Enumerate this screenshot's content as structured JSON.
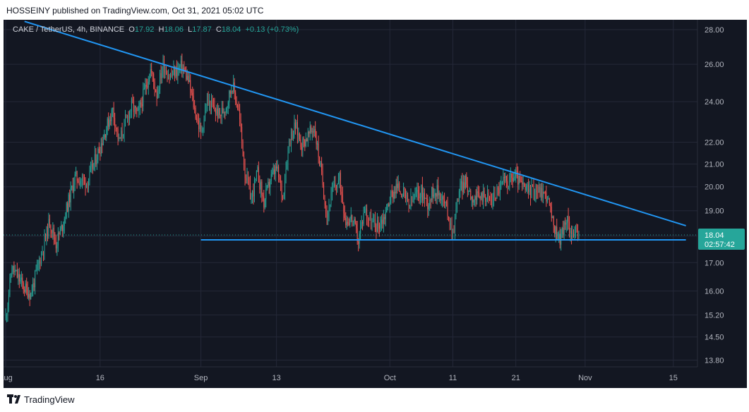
{
  "header": {
    "published_by": "HOSSEINY published on TradingView.com, Oct 31, 2021 05:02 UTC"
  },
  "legend": {
    "symbol": "CAKE / TetherUS, 4h, BINANCE",
    "open_label": "O",
    "open": "17.92",
    "high_label": "H",
    "high": "18.06",
    "low_label": "L",
    "low": "17.87",
    "close_label": "C",
    "close": "18.04",
    "change": "+0.13 (+0.73%)"
  },
  "footer": {
    "brand": "TradingView"
  },
  "chart_data": {
    "type": "candlestick",
    "price_axis": {
      "scale": "log",
      "ticks": [
        "28.00",
        "26.00",
        "24.00",
        "22.00",
        "21.00",
        "20.00",
        "19.00",
        "18.00",
        "17.00",
        "16.00",
        "15.20",
        "14.50",
        "13.80"
      ],
      "range": [
        13.6,
        28.6
      ]
    },
    "time_axis": {
      "ticks": [
        {
          "label": "Aug",
          "date": "2021-08-01"
        },
        {
          "label": "16",
          "date": "2021-08-16"
        },
        {
          "label": "Sep",
          "date": "2021-09-01"
        },
        {
          "label": "13",
          "date": "2021-09-13"
        },
        {
          "label": "Oct",
          "date": "2021-10-01"
        },
        {
          "label": "11",
          "date": "2021-10-11"
        },
        {
          "label": "21",
          "date": "2021-10-21"
        },
        {
          "label": "Nov",
          "date": "2021-11-01"
        },
        {
          "label": "15",
          "date": "2021-11-15"
        }
      ]
    },
    "last_price": {
      "value": "18.04",
      "countdown": "02:57:42"
    },
    "price_path": [
      [
        "2021-08-01",
        15.1
      ],
      [
        "2021-08-02",
        16.8
      ],
      [
        "2021-08-04",
        16.1
      ],
      [
        "2021-08-05",
        15.9
      ],
      [
        "2021-08-07",
        17.6
      ],
      [
        "2021-08-08",
        18.6
      ],
      [
        "2021-08-09",
        17.7
      ],
      [
        "2021-08-10",
        18.4
      ],
      [
        "2021-08-12",
        20.4
      ],
      [
        "2021-08-14",
        20.2
      ],
      [
        "2021-08-16",
        21.8
      ],
      [
        "2021-08-18",
        23.6
      ],
      [
        "2021-08-19",
        22.0
      ],
      [
        "2021-08-21",
        23.8
      ],
      [
        "2021-08-22",
        23.3
      ],
      [
        "2021-08-24",
        25.7
      ],
      [
        "2021-08-25",
        24.4
      ],
      [
        "2021-08-26",
        26.0
      ],
      [
        "2021-08-27",
        25.3
      ],
      [
        "2021-08-29",
        25.9
      ],
      [
        "2021-08-30",
        25.1
      ],
      [
        "2021-08-31",
        23.6
      ],
      [
        "2021-09-01",
        22.4
      ],
      [
        "2021-09-02",
        24.0
      ],
      [
        "2021-09-04",
        23.3
      ],
      [
        "2021-09-05",
        23.8
      ],
      [
        "2021-09-06",
        24.9
      ],
      [
        "2021-09-07",
        23.5
      ],
      [
        "2021-09-08",
        20.6
      ],
      [
        "2021-09-09",
        19.5
      ],
      [
        "2021-09-10",
        20.6
      ],
      [
        "2021-09-11",
        19.3
      ],
      [
        "2021-09-12",
        20.3
      ],
      [
        "2021-09-13",
        20.8
      ],
      [
        "2021-09-14",
        19.6
      ],
      [
        "2021-09-15",
        22.1
      ],
      [
        "2021-09-16",
        22.8
      ],
      [
        "2021-09-17",
        21.9
      ],
      [
        "2021-09-19",
        22.7
      ],
      [
        "2021-09-20",
        20.8
      ],
      [
        "2021-09-21",
        18.8
      ],
      [
        "2021-09-22",
        19.9
      ],
      [
        "2021-09-23",
        20.3
      ],
      [
        "2021-09-24",
        18.6
      ],
      [
        "2021-09-25",
        18.7
      ],
      [
        "2021-09-26",
        17.8
      ],
      [
        "2021-09-27",
        19.1
      ],
      [
        "2021-09-28",
        18.5
      ],
      [
        "2021-09-29",
        18.4
      ],
      [
        "2021-09-30",
        18.7
      ],
      [
        "2021-10-01",
        19.5
      ],
      [
        "2021-10-02",
        20.0
      ],
      [
        "2021-10-03",
        19.8
      ],
      [
        "2021-10-04",
        19.2
      ],
      [
        "2021-10-05",
        19.6
      ],
      [
        "2021-10-06",
        19.8
      ],
      [
        "2021-10-07",
        19.3
      ],
      [
        "2021-10-08",
        19.9
      ],
      [
        "2021-10-09",
        19.7
      ],
      [
        "2021-10-10",
        19.1
      ],
      [
        "2021-10-11",
        18.1
      ],
      [
        "2021-10-12",
        19.9
      ],
      [
        "2021-10-13",
        20.2
      ],
      [
        "2021-10-14",
        19.6
      ],
      [
        "2021-10-15",
        19.5
      ],
      [
        "2021-10-16",
        19.7
      ],
      [
        "2021-10-17",
        19.4
      ],
      [
        "2021-10-18",
        19.8
      ],
      [
        "2021-10-19",
        20.2
      ],
      [
        "2021-10-20",
        20.3
      ],
      [
        "2021-10-21",
        20.5
      ],
      [
        "2021-10-22",
        20.0
      ],
      [
        "2021-10-23",
        19.8
      ],
      [
        "2021-10-24",
        19.9
      ],
      [
        "2021-10-25",
        19.8
      ],
      [
        "2021-10-26",
        19.6
      ],
      [
        "2021-10-27",
        18.3
      ],
      [
        "2021-10-28",
        17.9
      ],
      [
        "2021-10-29",
        18.6
      ],
      [
        "2021-10-30",
        18.1
      ],
      [
        "2021-10-31",
        18.04
      ]
    ],
    "trendlines": [
      {
        "name": "descending resistance",
        "from": [
          "2021-08-04",
          28.5
        ],
        "to": [
          "2021-11-17",
          18.4
        ]
      },
      {
        "name": "horizontal support",
        "from": [
          "2021-09-01",
          17.85
        ],
        "to": [
          "2021-11-17",
          17.85
        ]
      }
    ],
    "colors": {
      "background": "#131722",
      "grid": "#242838",
      "up_candle": "#26a69a",
      "down_candle": "#ef5350",
      "trendline": "#2196f3",
      "axis_text": "#b2b5be",
      "last_price_label": "#26a69a"
    }
  }
}
